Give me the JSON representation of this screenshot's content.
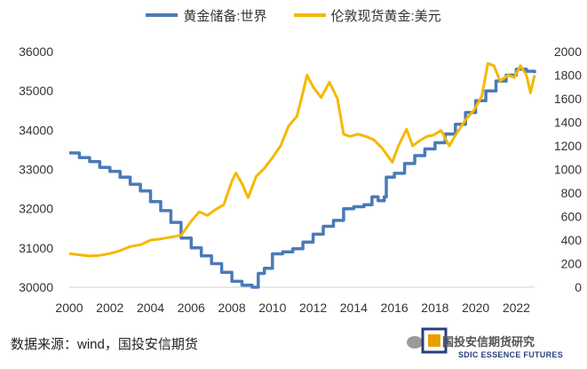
{
  "chart_data": {
    "type": "line",
    "title": "",
    "xlabel": "",
    "ylabel_left": "",
    "ylabel_right": "",
    "x_ticks": [
      "2000",
      "2002",
      "2004",
      "2006",
      "2008",
      "2010",
      "2012",
      "2014",
      "2016",
      "2018",
      "2020",
      "2022"
    ],
    "y_left_ticks": [
      "30000",
      "31000",
      "32000",
      "33000",
      "34000",
      "35000",
      "36000"
    ],
    "y_right_ticks": [
      "0",
      "200",
      "400",
      "600",
      "800",
      "1000",
      "1200",
      "1400",
      "1600",
      "1800",
      "2000"
    ],
    "ylim_left": [
      30000,
      36000
    ],
    "ylim_right": [
      0,
      2000
    ],
    "xlim": [
      2000,
      2022.9
    ],
    "grid": false,
    "legend_position": "top",
    "series": [
      {
        "name": "黄金储备:世界",
        "axis": "left",
        "color": "#4a7ab8",
        "x": [
          2000.0,
          2000.5,
          2001.0,
          2001.5,
          2002.0,
          2002.5,
          2003.0,
          2003.5,
          2004.0,
          2004.5,
          2005.0,
          2005.5,
          2006.0,
          2006.5,
          2007.0,
          2007.5,
          2008.0,
          2008.5,
          2009.0,
          2009.3,
          2009.6,
          2010.0,
          2010.5,
          2011.0,
          2011.5,
          2012.0,
          2012.5,
          2013.0,
          2013.5,
          2014.0,
          2014.5,
          2014.9,
          2015.2,
          2015.5,
          2015.6,
          2016.0,
          2016.5,
          2017.0,
          2017.5,
          2018.0,
          2018.5,
          2019.0,
          2019.5,
          2020.0,
          2020.5,
          2021.0,
          2021.5,
          2022.0,
          2022.5,
          2022.9
        ],
        "values": [
          33420,
          33300,
          33200,
          33050,
          32950,
          32800,
          32620,
          32450,
          32180,
          31950,
          31650,
          31250,
          31000,
          30800,
          30600,
          30380,
          30150,
          30050,
          30000,
          30350,
          30480,
          30850,
          30900,
          30980,
          31150,
          31350,
          31550,
          31700,
          32000,
          32050,
          32100,
          32300,
          32200,
          32300,
          32800,
          32900,
          33150,
          33350,
          33520,
          33680,
          33900,
          34150,
          34450,
          34750,
          35000,
          35250,
          35400,
          35550,
          35500,
          35450
        ]
      },
      {
        "name": "伦敦现货黄金:美元",
        "axis": "right",
        "color": "#f5b800",
        "x": [
          2000.0,
          2000.5,
          2001.0,
          2001.5,
          2002.0,
          2002.5,
          2003.0,
          2003.5,
          2004.0,
          2004.5,
          2005.0,
          2005.5,
          2006.0,
          2006.4,
          2006.8,
          2007.2,
          2007.6,
          2008.0,
          2008.2,
          2008.5,
          2008.8,
          2009.2,
          2009.6,
          2010.0,
          2010.4,
          2010.8,
          2011.2,
          2011.5,
          2011.7,
          2012.0,
          2012.4,
          2012.8,
          2013.2,
          2013.5,
          2013.8,
          2014.2,
          2014.6,
          2015.0,
          2015.4,
          2015.9,
          2016.2,
          2016.6,
          2016.9,
          2017.3,
          2017.6,
          2017.9,
          2018.3,
          2018.7,
          2019.0,
          2019.5,
          2019.9,
          2020.3,
          2020.6,
          2020.9,
          2021.2,
          2021.6,
          2021.9,
          2022.2,
          2022.5,
          2022.7,
          2022.9
        ],
        "values": [
          285,
          275,
          265,
          270,
          285,
          310,
          345,
          360,
          400,
          410,
          425,
          440,
          560,
          640,
          610,
          660,
          700,
          900,
          970,
          880,
          760,
          940,
          1010,
          1100,
          1200,
          1370,
          1450,
          1650,
          1800,
          1700,
          1610,
          1740,
          1600,
          1300,
          1280,
          1300,
          1280,
          1250,
          1180,
          1060,
          1200,
          1340,
          1200,
          1250,
          1280,
          1290,
          1330,
          1200,
          1290,
          1420,
          1500,
          1620,
          1900,
          1880,
          1750,
          1800,
          1780,
          1880,
          1800,
          1650,
          1800
        ]
      }
    ]
  },
  "source_text": "数据来源：wind，国投安信期货",
  "logo_text": "国投安信期货研究",
  "logo_en": "SDIC ESSENCE FUTURES"
}
